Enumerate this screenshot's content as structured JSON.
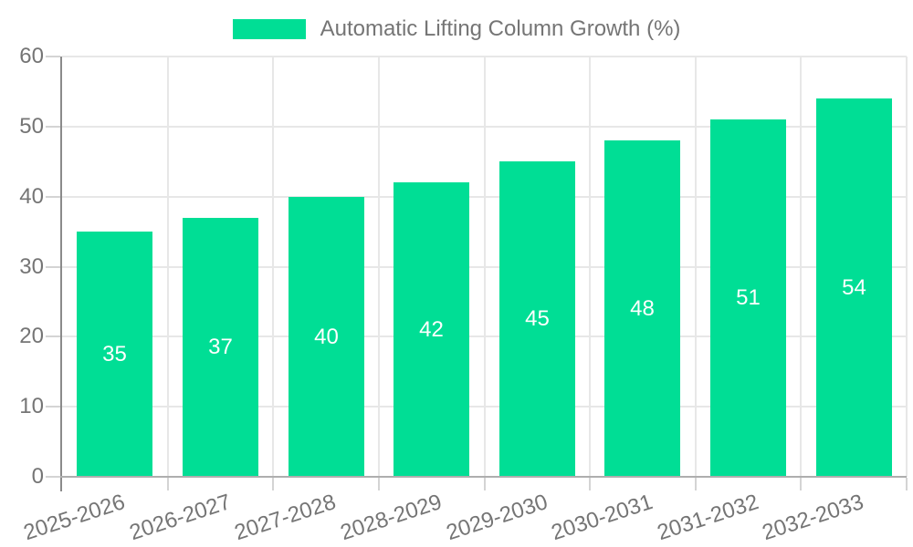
{
  "chart_data": {
    "type": "bar",
    "title": "Automatic Lifting Column Growth (%)",
    "legend": [
      "Automatic Lifting Column Growth (%)"
    ],
    "legend_position": "top",
    "categories": [
      "2025-2026",
      "2026-2027",
      "2027-2028",
      "2028-2029",
      "2029-2030",
      "2030-2031",
      "2031-2032",
      "2032-2033"
    ],
    "values": [
      35,
      37,
      40,
      42,
      45,
      48,
      51,
      54
    ],
    "xlabel": "",
    "ylabel": "",
    "ylim": [
      0,
      60
    ],
    "yticks": [
      0,
      10,
      20,
      30,
      40,
      50,
      60
    ],
    "grid": true,
    "x_label_rotation_deg": -18,
    "bar_color": "#00DE95",
    "bar_value_label_color": "#FFFFFF",
    "axis_text_color": "#757575",
    "grid_color": "#E7E7E7",
    "y_axis_line_color": "#8A8A8A",
    "x_axis_line_color": "#AEAEAE"
  }
}
